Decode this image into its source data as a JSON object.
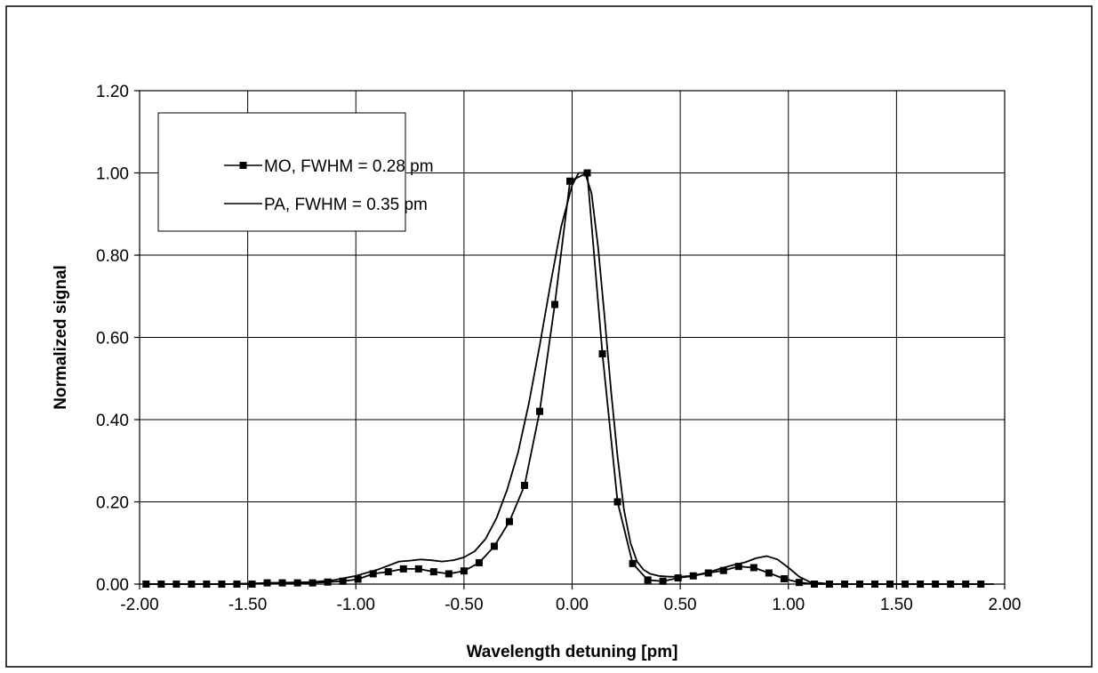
{
  "chart_data": {
    "type": "line",
    "xlabel": "Wavelength detuning [pm]",
    "ylabel": "Normalized signal",
    "xlim": [
      -2.0,
      2.0
    ],
    "ylim": [
      0.0,
      1.2
    ],
    "xticks": [
      -2.0,
      -1.5,
      -1.0,
      -0.5,
      0.0,
      0.5,
      1.0,
      1.5,
      2.0
    ],
    "yticks": [
      0.0,
      0.2,
      0.4,
      0.6,
      0.8,
      1.0,
      1.2
    ],
    "xtick_labels": [
      "-2.00",
      "-1.50",
      "-1.00",
      "-0.50",
      "0.00",
      "0.50",
      "1.00",
      "1.50",
      "2.00"
    ],
    "ytick_labels": [
      "0.00",
      "0.20",
      "0.40",
      "0.60",
      "0.80",
      "1.00",
      "1.20"
    ],
    "grid": true,
    "legend_position": "top-left",
    "series": [
      {
        "name": "MO, FWHM = 0.28 pm",
        "marker": "square",
        "color": "#000000",
        "x": [
          -1.97,
          -1.9,
          -1.83,
          -1.76,
          -1.69,
          -1.62,
          -1.55,
          -1.48,
          -1.41,
          -1.34,
          -1.27,
          -1.2,
          -1.13,
          -1.06,
          -0.99,
          -0.92,
          -0.85,
          -0.78,
          -0.71,
          -0.64,
          -0.57,
          -0.5,
          -0.43,
          -0.36,
          -0.29,
          -0.22,
          -0.15,
          -0.08,
          -0.01,
          0.07,
          0.14,
          0.21,
          0.28,
          0.35,
          0.42,
          0.49,
          0.56,
          0.63,
          0.7,
          0.77,
          0.84,
          0.91,
          0.98,
          1.05,
          1.12,
          1.19,
          1.26,
          1.33,
          1.4,
          1.47,
          1.54,
          1.61,
          1.68,
          1.75,
          1.82,
          1.89
        ],
        "y": [
          0.0,
          0.0,
          0.0,
          0.0,
          0.0,
          0.0,
          0.0,
          0.0,
          0.003,
          0.003,
          0.003,
          0.003,
          0.005,
          0.007,
          0.012,
          0.025,
          0.03,
          0.037,
          0.037,
          0.03,
          0.025,
          0.032,
          0.052,
          0.092,
          0.152,
          0.24,
          0.42,
          0.68,
          0.98,
          1.0,
          0.56,
          0.2,
          0.05,
          0.01,
          0.007,
          0.015,
          0.02,
          0.027,
          0.033,
          0.043,
          0.04,
          0.027,
          0.013,
          0.004,
          0.0,
          0.0,
          0.0,
          0.0,
          0.0,
          0.0,
          0.0,
          0.0,
          0.0,
          0.0,
          0.0,
          0.0
        ]
      },
      {
        "name": "PA, FWHM = 0.35 pm",
        "marker": "none",
        "color": "#000000",
        "x": [
          -1.97,
          -1.8,
          -1.6,
          -1.4,
          -1.2,
          -1.1,
          -1.0,
          -0.9,
          -0.8,
          -0.75,
          -0.7,
          -0.65,
          -0.6,
          -0.55,
          -0.5,
          -0.45,
          -0.4,
          -0.35,
          -0.3,
          -0.25,
          -0.2,
          -0.15,
          -0.1,
          -0.05,
          0.0,
          0.03,
          0.06,
          0.09,
          0.12,
          0.15,
          0.18,
          0.21,
          0.24,
          0.27,
          0.3,
          0.33,
          0.36,
          0.4,
          0.45,
          0.5,
          0.55,
          0.6,
          0.65,
          0.7,
          0.75,
          0.8,
          0.85,
          0.9,
          0.95,
          1.0,
          1.05,
          1.1,
          1.2,
          1.4,
          1.6,
          1.8,
          1.95
        ],
        "y": [
          0.0,
          0.0,
          0.0,
          0.003,
          0.005,
          0.01,
          0.02,
          0.035,
          0.055,
          0.057,
          0.06,
          0.058,
          0.055,
          0.058,
          0.065,
          0.08,
          0.11,
          0.16,
          0.23,
          0.32,
          0.44,
          0.58,
          0.73,
          0.87,
          0.97,
          1.0,
          1.0,
          0.95,
          0.82,
          0.65,
          0.47,
          0.31,
          0.18,
          0.1,
          0.055,
          0.035,
          0.025,
          0.02,
          0.018,
          0.018,
          0.02,
          0.025,
          0.032,
          0.04,
          0.047,
          0.053,
          0.063,
          0.068,
          0.06,
          0.04,
          0.018,
          0.005,
          0.0,
          0.0,
          0.0,
          0.0,
          0.0
        ]
      }
    ]
  }
}
